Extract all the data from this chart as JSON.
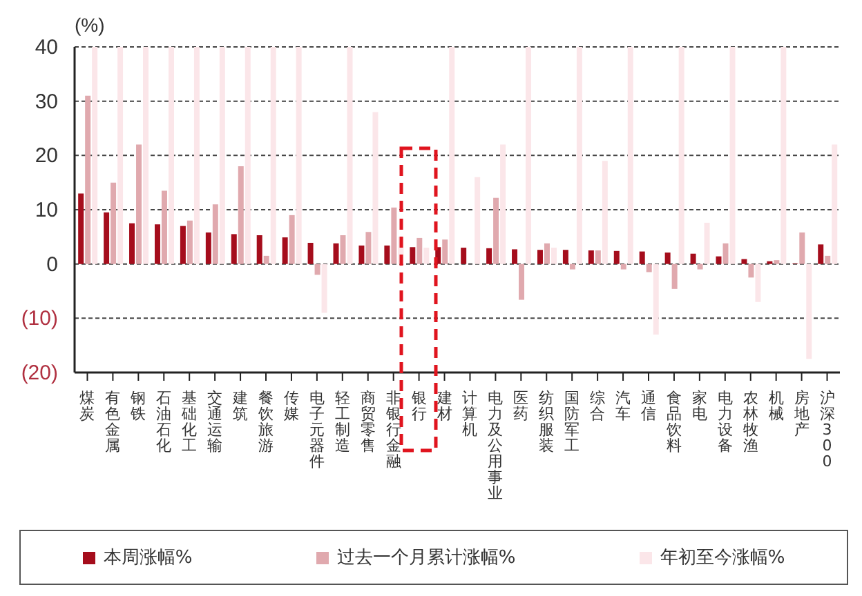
{
  "chart_data": {
    "type": "bar",
    "ylabel": "(%)",
    "categories": [
      "煤炭",
      "有色金属",
      "钢铁",
      "石油石化",
      "基础化工",
      "交通运输",
      "建筑",
      "餐饮旅游",
      "传媒",
      "电子元器件",
      "轻工制造",
      "商贸零售",
      "非银行金融",
      "银行",
      "建材",
      "计算机",
      "电力及公用事业",
      "医药",
      "纺织服装",
      "国防军工",
      "综合",
      "汽车",
      "通信",
      "食品饮料",
      "家电",
      "电力设备",
      "农林牧渔",
      "机械",
      "房地产",
      "沪深300"
    ],
    "series": [
      {
        "name": "本周涨幅%",
        "color": "#a50d1c",
        "values": [
          13,
          9.5,
          7.5,
          7.3,
          7,
          5.8,
          5.5,
          5.3,
          4.9,
          3.9,
          3.8,
          3.4,
          3.4,
          3.1,
          3.1,
          3,
          2.9,
          2.7,
          2.6,
          2.6,
          2.5,
          2.4,
          2.3,
          2.1,
          1.9,
          1.4,
          0.9,
          0.5,
          0.1,
          3.6
        ]
      },
      {
        "name": "过去一个月累计涨幅%",
        "color": "#e0a9ae",
        "values": [
          31,
          15,
          22,
          13.5,
          8,
          11,
          18,
          1.5,
          9,
          -2,
          5.3,
          5.9,
          10.4,
          4.8,
          4.5,
          null,
          12.2,
          -6.6,
          3.8,
          -1,
          2.5,
          -1,
          -1.5,
          -4.6,
          -1,
          3.8,
          -2.5,
          0.7,
          5.8,
          1.5
        ]
      },
      {
        "name": "年初至今涨幅%",
        "color": "#fbe6e9",
        "values": [
          40,
          40,
          40,
          40,
          40,
          40,
          40,
          40,
          40,
          -9,
          40,
          28,
          5,
          3,
          40,
          16,
          22,
          40,
          3,
          40,
          19,
          40,
          -13,
          40,
          7.6,
          40,
          -7,
          40,
          -17.5,
          22
        ]
      }
    ],
    "ylim": [
      -20,
      40
    ],
    "yticks": [
      {
        "value": -20,
        "label": "(20)"
      },
      {
        "value": -10,
        "label": "(10)"
      },
      0,
      10,
      20,
      30,
      40
    ],
    "grid": "y",
    "legend": "bottom"
  }
}
